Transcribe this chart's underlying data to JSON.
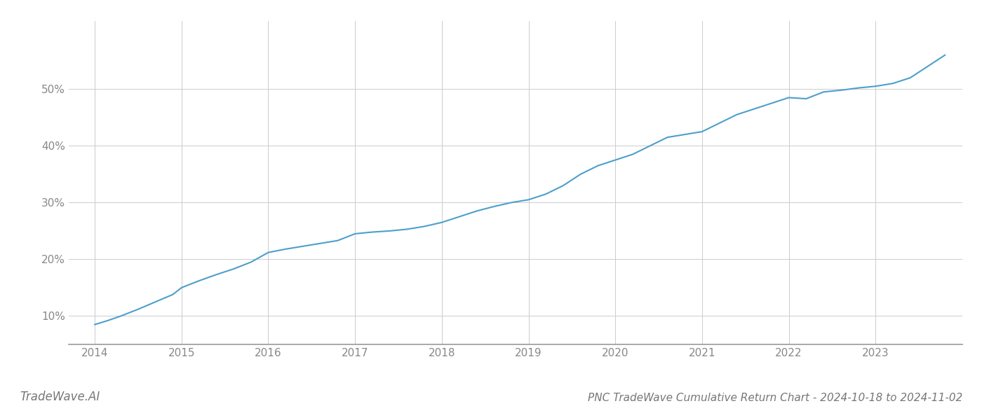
{
  "title": "PNC TradeWave Cumulative Return Chart - 2024-10-18 to 2024-11-02",
  "watermark": "TradeWave.AI",
  "line_color": "#4d9fcc",
  "background_color": "#ffffff",
  "grid_color": "#cccccc",
  "x_values": [
    2014.0,
    2014.15,
    2014.3,
    2014.5,
    2014.7,
    2014.9,
    2015.0,
    2015.2,
    2015.4,
    2015.6,
    2015.8,
    2016.0,
    2016.2,
    2016.4,
    2016.6,
    2016.8,
    2017.0,
    2017.2,
    2017.4,
    2017.6,
    2017.8,
    2018.0,
    2018.2,
    2018.4,
    2018.6,
    2018.8,
    2019.0,
    2019.2,
    2019.4,
    2019.6,
    2019.8,
    2020.0,
    2020.2,
    2020.4,
    2020.6,
    2020.8,
    2021.0,
    2021.2,
    2021.4,
    2021.6,
    2021.8,
    2022.0,
    2022.2,
    2022.4,
    2022.6,
    2022.8,
    2023.0,
    2023.2,
    2023.4,
    2023.6,
    2023.8
  ],
  "y_values": [
    8.5,
    9.2,
    10.0,
    11.2,
    12.5,
    13.8,
    15.0,
    16.2,
    17.3,
    18.3,
    19.5,
    21.2,
    21.8,
    22.3,
    22.8,
    23.3,
    24.5,
    24.8,
    25.0,
    25.3,
    25.8,
    26.5,
    27.5,
    28.5,
    29.3,
    30.0,
    30.5,
    31.5,
    33.0,
    35.0,
    36.5,
    37.5,
    38.5,
    40.0,
    41.5,
    42.0,
    42.5,
    44.0,
    45.5,
    46.5,
    47.5,
    48.5,
    48.3,
    49.5,
    49.8,
    50.2,
    50.5,
    51.0,
    52.0,
    54.0,
    56.0
  ],
  "xlim": [
    2013.7,
    2024.0
  ],
  "ylim": [
    5,
    62
  ],
  "yticks": [
    10,
    20,
    30,
    40,
    50
  ],
  "xticks": [
    2014,
    2015,
    2016,
    2017,
    2018,
    2019,
    2020,
    2021,
    2022,
    2023
  ],
  "line_width": 1.5,
  "title_fontsize": 11,
  "watermark_fontsize": 12,
  "title_color": "#777777",
  "watermark_color": "#777777",
  "tick_fontsize": 11,
  "tick_color": "#888888",
  "spine_color": "#999999"
}
